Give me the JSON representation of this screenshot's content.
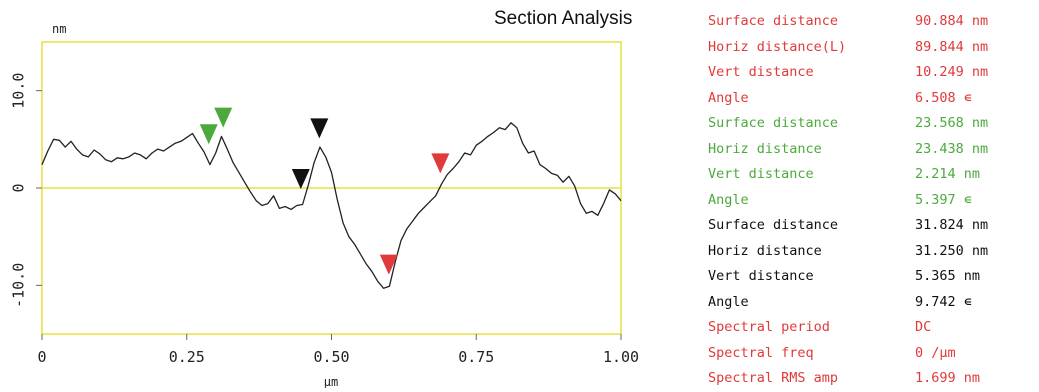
{
  "chart_data": {
    "type": "line",
    "title": "Section Analysis",
    "xlabel": "µm",
    "ylabel": "nm",
    "xlim": [
      0,
      1.0
    ],
    "ylim": [
      -15,
      15
    ],
    "xticks": [
      "0",
      "0.25",
      "0.50",
      "0.75",
      "1.00"
    ],
    "xtick_values": [
      0,
      0.25,
      0.5,
      0.75,
      1.0
    ],
    "yticks": [
      "10.0",
      "0",
      "-10.0"
    ],
    "ytick_values": [
      10,
      0,
      -10
    ],
    "zero_line": true,
    "series": [
      {
        "x": [
          0.0,
          0.01,
          0.02,
          0.03,
          0.04,
          0.05,
          0.06,
          0.07,
          0.08,
          0.09,
          0.1,
          0.11,
          0.12,
          0.13,
          0.14,
          0.15,
          0.16,
          0.17,
          0.18,
          0.19,
          0.2,
          0.21,
          0.22,
          0.23,
          0.24,
          0.25,
          0.26,
          0.27,
          0.28,
          0.29,
          0.3,
          0.31,
          0.32,
          0.33,
          0.34,
          0.35,
          0.36,
          0.37,
          0.38,
          0.39,
          0.4,
          0.41,
          0.42,
          0.43,
          0.44,
          0.45,
          0.46,
          0.47,
          0.48,
          0.49,
          0.5,
          0.51,
          0.52,
          0.53,
          0.54,
          0.55,
          0.56,
          0.57,
          0.58,
          0.59,
          0.6,
          0.61,
          0.62,
          0.63,
          0.64,
          0.65,
          0.66,
          0.67,
          0.68,
          0.69,
          0.7,
          0.71,
          0.72,
          0.73,
          0.74,
          0.75,
          0.76,
          0.77,
          0.78,
          0.79,
          0.8,
          0.81,
          0.82,
          0.83,
          0.84,
          0.85,
          0.86,
          0.87,
          0.88,
          0.89,
          0.9,
          0.91,
          0.92,
          0.93,
          0.94,
          0.95,
          0.96,
          0.97,
          0.98,
          0.99,
          1.0
        ],
        "y": [
          2.4,
          3.8,
          5.0,
          4.9,
          4.2,
          4.8,
          4.0,
          3.4,
          3.2,
          3.9,
          3.5,
          2.9,
          2.7,
          3.1,
          3.0,
          3.2,
          3.6,
          3.4,
          3.0,
          3.6,
          4.0,
          3.8,
          4.2,
          4.6,
          4.8,
          5.2,
          5.6,
          4.6,
          3.7,
          2.4,
          3.6,
          5.3,
          4.0,
          2.6,
          1.6,
          0.6,
          -0.4,
          -1.3,
          -1.8,
          -1.6,
          -0.8,
          -2.1,
          -1.9,
          -2.2,
          -1.8,
          -1.7,
          0.3,
          2.6,
          4.2,
          3.2,
          1.6,
          -1.2,
          -3.6,
          -5.0,
          -5.8,
          -6.8,
          -7.8,
          -8.6,
          -9.6,
          -10.3,
          -10.1,
          -7.6,
          -5.4,
          -4.2,
          -3.4,
          -2.6,
          -2.0,
          -1.4,
          -0.8,
          0.4,
          1.4,
          2.0,
          2.7,
          3.6,
          3.4,
          4.4,
          4.8,
          5.3,
          5.7,
          6.2,
          6.0,
          6.7,
          6.2,
          4.6,
          3.6,
          3.8,
          2.4,
          2.0,
          1.5,
          1.3,
          0.6,
          1.2,
          0.2,
          -1.6,
          -2.6,
          -2.4,
          -2.8,
          -1.6,
          -0.2,
          -0.6,
          -1.3
        ]
      }
    ],
    "markers": [
      {
        "x": 0.288,
        "y": 4.6,
        "color": "#4caa3c"
      },
      {
        "x": 0.313,
        "y": 6.3,
        "color": "#4caa3c"
      },
      {
        "x": 0.447,
        "y": 0.0,
        "color": "#111111"
      },
      {
        "x": 0.479,
        "y": 5.2,
        "color": "#111111"
      },
      {
        "x": 0.599,
        "y": -8.8,
        "color": "#e03a3a"
      },
      {
        "x": 0.688,
        "y": 1.6,
        "color": "#e03a3a"
      }
    ]
  },
  "colors": {
    "red": "#e03a3a",
    "green": "#4caa3c",
    "black": "#111111",
    "axis": "#e8e040"
  },
  "measurements": [
    {
      "label": "Surface distance",
      "value": "90.884 nm",
      "color": "red"
    },
    {
      "label": "Horiz distance(L)",
      "value": "89.844 nm",
      "color": "red"
    },
    {
      "label": "Vert distance",
      "value": "10.249 nm",
      "color": "red"
    },
    {
      "label": "Angle",
      "value": "6.508 ∊",
      "color": "red"
    },
    {
      "label": "Surface distance",
      "value": "23.568 nm",
      "color": "green"
    },
    {
      "label": "Horiz distance",
      "value": "23.438 nm",
      "color": "green"
    },
    {
      "label": "Vert distance",
      "value": "2.214 nm",
      "color": "green"
    },
    {
      "label": "Angle",
      "value": "5.397 ∊",
      "color": "green"
    },
    {
      "label": "Surface distance",
      "value": "31.824 nm",
      "color": "black"
    },
    {
      "label": "Horiz distance",
      "value": "31.250 nm",
      "color": "black"
    },
    {
      "label": "Vert distance",
      "value": "5.365 nm",
      "color": "black"
    },
    {
      "label": "Angle",
      "value": "9.742 ∊",
      "color": "black"
    },
    {
      "label": "Spectral period",
      "value": "DC",
      "color": "red"
    },
    {
      "label": "Spectral freq",
      "value": "0 /µm",
      "color": "red"
    },
    {
      "label": "Spectral RMS amp",
      "value": "1.699 nm",
      "color": "red"
    }
  ]
}
